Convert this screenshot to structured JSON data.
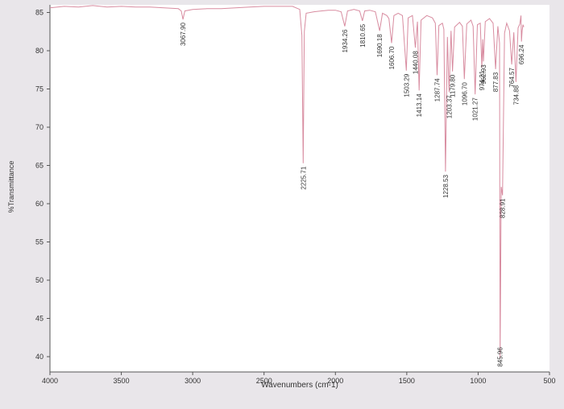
{
  "chart_data": {
    "type": "line",
    "title": "",
    "xlabel": "Wavenumbers (cm-1)",
    "ylabel": "%Transmittance",
    "xlim": [
      4000,
      500
    ],
    "ylim": [
      38,
      86
    ],
    "x_ticks": [
      "4000",
      "3500",
      "3000",
      "2500",
      "2000",
      "1500",
      "1000",
      "500"
    ],
    "y_ticks": [
      "85",
      "80",
      "75",
      "70",
      "65",
      "60",
      "55",
      "50",
      "45",
      "40"
    ],
    "grid": false,
    "line_color": "#d88ca0",
    "series": [
      {
        "points": [
          [
            4000,
            85.6
          ],
          [
            3900,
            85.8
          ],
          [
            3800,
            85.7
          ],
          [
            3700,
            85.9
          ],
          [
            3600,
            85.7
          ],
          [
            3500,
            85.8
          ],
          [
            3400,
            85.7
          ],
          [
            3300,
            85.7
          ],
          [
            3200,
            85.6
          ],
          [
            3100,
            85.5
          ],
          [
            3080,
            85.2
          ],
          [
            3067.9,
            84.1
          ],
          [
            3055,
            85.2
          ],
          [
            3000,
            85.4
          ],
          [
            2900,
            85.5
          ],
          [
            2800,
            85.5
          ],
          [
            2700,
            85.6
          ],
          [
            2600,
            85.7
          ],
          [
            2500,
            85.8
          ],
          [
            2400,
            85.8
          ],
          [
            2300,
            85.8
          ],
          [
            2250,
            85.4
          ],
          [
            2235,
            82.0
          ],
          [
            2225.71,
            65.3
          ],
          [
            2218,
            82.5
          ],
          [
            2205,
            84.9
          ],
          [
            2150,
            85.1
          ],
          [
            2100,
            85.2
          ],
          [
            2050,
            85.3
          ],
          [
            2000,
            85.3
          ],
          [
            1960,
            85.1
          ],
          [
            1934.26,
            83.2
          ],
          [
            1915,
            85.2
          ],
          [
            1870,
            85.4
          ],
          [
            1830,
            85.2
          ],
          [
            1810.65,
            83.9
          ],
          [
            1795,
            85.2
          ],
          [
            1760,
            85.3
          ],
          [
            1720,
            85.1
          ],
          [
            1690.18,
            82.6
          ],
          [
            1670,
            84.9
          ],
          [
            1640,
            84.6
          ],
          [
            1625,
            84.2
          ],
          [
            1606.7,
            81.0
          ],
          [
            1590,
            84.6
          ],
          [
            1560,
            84.9
          ],
          [
            1530,
            84.6
          ],
          [
            1503.29,
            77.4
          ],
          [
            1490,
            84.3
          ],
          [
            1460,
            84.6
          ],
          [
            1440.08,
            80.4
          ],
          [
            1425,
            83.8
          ],
          [
            1413.14,
            74.8
          ],
          [
            1400,
            84.0
          ],
          [
            1360,
            84.6
          ],
          [
            1320,
            84.3
          ],
          [
            1300,
            83.6
          ],
          [
            1287.74,
            76.8
          ],
          [
            1275,
            83.3
          ],
          [
            1250,
            83.6
          ],
          [
            1240,
            82.8
          ],
          [
            1228.53,
            64.2
          ],
          [
            1215,
            81.8
          ],
          [
            1203.37,
            74.6
          ],
          [
            1190,
            82.6
          ],
          [
            1179.8,
            77.3
          ],
          [
            1165,
            83.1
          ],
          [
            1130,
            83.7
          ],
          [
            1110,
            83.2
          ],
          [
            1096.7,
            76.3
          ],
          [
            1080,
            83.5
          ],
          [
            1050,
            84.0
          ],
          [
            1035,
            83.2
          ],
          [
            1021.27,
            74.3
          ],
          [
            1005,
            83.4
          ],
          [
            985,
            83.6
          ],
          [
            974.21,
            77.8
          ],
          [
            968,
            81.5
          ],
          [
            962.93,
            78.6
          ],
          [
            950,
            83.8
          ],
          [
            920,
            84.2
          ],
          [
            895,
            83.6
          ],
          [
            877.83,
            77.6
          ],
          [
            862,
            83.2
          ],
          [
            850,
            81.0
          ],
          [
            845.96,
            39.8
          ],
          [
            838,
            62.2
          ],
          [
            828.91,
            61.1
          ],
          [
            815,
            82.3
          ],
          [
            800,
            83.6
          ],
          [
            780,
            82.6
          ],
          [
            764.57,
            78.2
          ],
          [
            750,
            82.4
          ],
          [
            734.88,
            75.9
          ],
          [
            720,
            83.0
          ],
          [
            708,
            83.5
          ],
          [
            700,
            84.6
          ],
          [
            696.24,
            81.2
          ],
          [
            692,
            82.6
          ],
          [
            686,
            83.4
          ],
          [
            680,
            83.1
          ]
        ]
      }
    ],
    "peak_labels": [
      {
        "x": 3067.9,
        "text": "3067.90"
      },
      {
        "x": 2225.71,
        "text": "2225.71"
      },
      {
        "x": 1934.26,
        "text": "1934.26"
      },
      {
        "x": 1810.65,
        "text": "1810.65"
      },
      {
        "x": 1690.18,
        "text": "1690.18"
      },
      {
        "x": 1606.7,
        "text": "1606.70"
      },
      {
        "x": 1503.29,
        "text": "1503.29"
      },
      {
        "x": 1440.08,
        "text": "1440.08"
      },
      {
        "x": 1413.14,
        "text": "1413.14"
      },
      {
        "x": 1287.74,
        "text": "1287.74"
      },
      {
        "x": 1228.53,
        "text": "1228.53"
      },
      {
        "x": 1203.37,
        "text": "1203.37"
      },
      {
        "x": 1179.8,
        "text": "1179.80"
      },
      {
        "x": 1096.7,
        "text": "1096.70"
      },
      {
        "x": 1021.27,
        "text": "1021.27"
      },
      {
        "x": 974.21,
        "text": "974.21"
      },
      {
        "x": 962.93,
        "text": "962.93"
      },
      {
        "x": 877.83,
        "text": "877.83"
      },
      {
        "x": 845.96,
        "text": "845.96"
      },
      {
        "x": 828.91,
        "text": "828.91"
      },
      {
        "x": 764.57,
        "text": "764.57"
      },
      {
        "x": 734.88,
        "text": "734.88"
      },
      {
        "x": 696.24,
        "text": "696.24"
      }
    ]
  }
}
